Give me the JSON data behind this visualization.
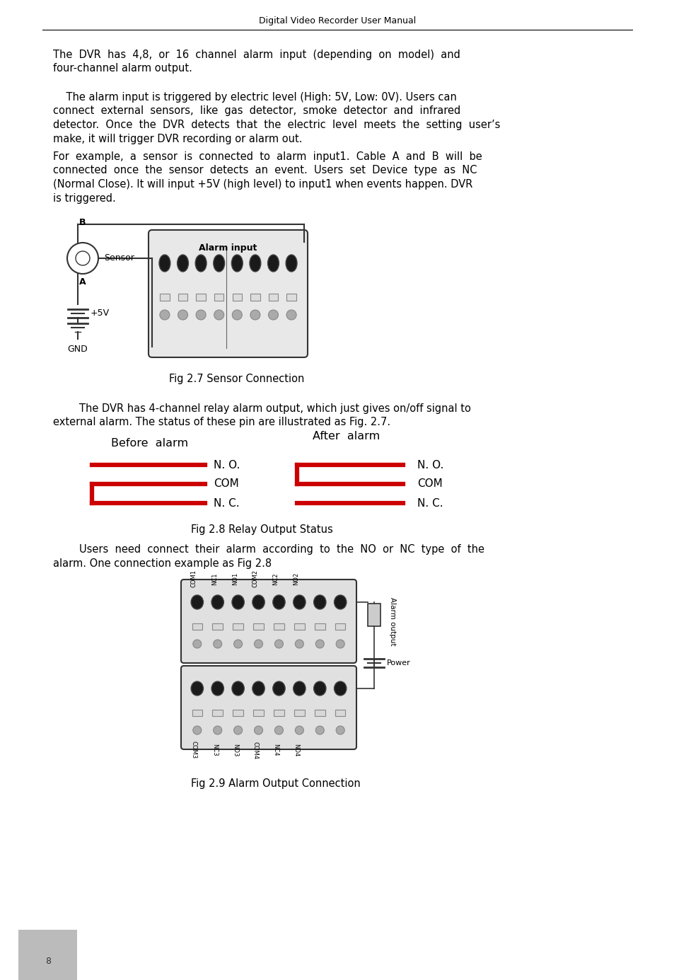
{
  "header_text": "Digital Video Recorder User Manual",
  "page_number": "8",
  "para1_line1": "The  DVR  has  4,8,  or  16  channel  alarm  input  (depending  on  model)  and",
  "para1_line2": "four-channel alarm output.",
  "para2_line1": "    The alarm input is triggered by electric level (High: 5V, Low: 0V). Users can",
  "para2_line2": "connect  external  sensors,  like  gas  detector,  smoke  detector  and  infrared",
  "para2_line3": "detector.  Once  the  DVR  detects  that  the  electric  level  meets  the  setting  user’s",
  "para2_line4": "make, it will trigger DVR recording or alarm out.",
  "para3_line1": "For  example,  a  sensor  is  connected  to  alarm  input1.  Cable  A  and  B  will  be",
  "para3_line2": "connected  once  the  sensor  detects  an  event.  Users  set  Device  type  as  NC",
  "para3_line3": "(Normal Close). It will input +5V (high level) to input1 when events happen. DVR",
  "para3_line4": "is triggered.",
  "fig27_caption": "Fig 2.7 Sensor Connection",
  "para4_line1": "        The DVR has 4-channel relay alarm output, which just gives on/off signal to",
  "para4_line2": "external alarm. The status of these pin are illustrated as Fig. 2.7.",
  "before_alarm": "Before  alarm",
  "after_alarm": "After  alarm",
  "label_no": "N. O.",
  "label_com": "COM",
  "label_nc": "N. C.",
  "fig28_caption": "Fig 2.8 Relay Output Status",
  "para5_line1": "        Users  need  connect  their  alarm  according  to  the  NO  or  NC  type  of  the",
  "para5_line2": "alarm. One connection example as Fig 2.8",
  "fig29_caption": "Fig 2.9 Alarm Output Connection",
  "alarm_output_label": "Alarm output",
  "power_label": "Power",
  "bg_color": "#ffffff",
  "text_color": "#000000",
  "red_color": "#cc0000",
  "dark_color": "#222222",
  "gray_color": "#888888",
  "light_gray": "#cccccc",
  "box_bg": "#e0e0e0"
}
